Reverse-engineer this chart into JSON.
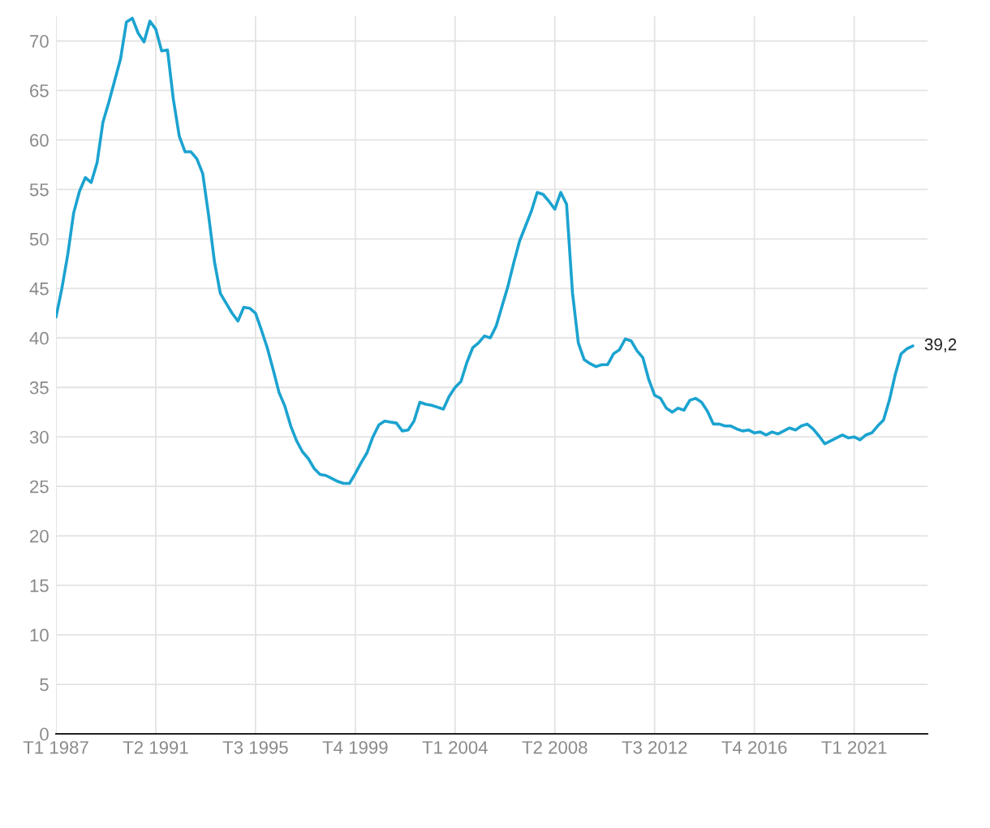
{
  "chart_data": {
    "type": "line",
    "categories": [
      "T1 1987",
      null,
      null,
      null,
      null,
      null,
      null,
      null,
      null,
      null,
      null,
      null,
      null,
      null,
      null,
      null,
      null,
      "T2 1991",
      null,
      null,
      null,
      null,
      null,
      null,
      null,
      null,
      null,
      null,
      null,
      null,
      null,
      null,
      null,
      null,
      "T3 1995",
      null,
      null,
      null,
      null,
      null,
      null,
      null,
      null,
      null,
      null,
      null,
      null,
      null,
      null,
      null,
      null,
      "T4 1999",
      null,
      null,
      null,
      null,
      null,
      null,
      null,
      null,
      null,
      null,
      null,
      null,
      null,
      null,
      null,
      null,
      "T1 2004",
      null,
      null,
      null,
      null,
      null,
      null,
      null,
      null,
      null,
      null,
      null,
      null,
      null,
      null,
      null,
      null,
      "T2 2008",
      null,
      null,
      null,
      null,
      null,
      null,
      null,
      null,
      null,
      null,
      null,
      null,
      null,
      null,
      null,
      null,
      "T3 2012",
      null,
      null,
      null,
      null,
      null,
      null,
      null,
      null,
      null,
      null,
      null,
      null,
      null,
      null,
      null,
      null,
      "T4 2016",
      null,
      null,
      null,
      null,
      null,
      null,
      null,
      null,
      null,
      null,
      null,
      null,
      null,
      null,
      null,
      null,
      "T1 2021",
      null,
      null,
      null,
      null,
      null,
      null,
      null,
      null,
      null,
      null
    ],
    "series": [
      {
        "color": "#1ba3d0",
        "values": [
          42.1,
          45.0,
          48.4,
          52.6,
          54.8,
          56.2,
          55.7,
          57.7,
          61.8,
          63.8,
          66.0,
          68.2,
          71.9,
          72.3,
          70.8,
          69.9,
          72.0,
          71.2,
          69.0,
          69.1,
          64.1,
          60.4,
          58.8,
          58.8,
          58.1,
          56.6,
          52.4,
          47.7,
          44.5,
          43.5,
          42.5,
          41.7,
          43.1,
          43.0,
          42.5,
          40.8,
          39.0,
          36.8,
          34.5,
          33.1,
          31.1,
          29.6,
          28.5,
          27.8,
          26.8,
          26.2,
          26.1,
          25.8,
          25.5,
          25.3,
          25.3,
          26.3,
          27.4,
          28.4,
          30.0,
          31.2,
          31.6,
          31.5,
          31.4,
          30.6,
          30.7,
          31.6,
          33.5,
          33.3,
          33.2,
          33.0,
          32.8,
          34.1,
          35.0,
          35.6,
          37.5,
          39.0,
          39.5,
          40.2,
          40.0,
          41.2,
          43.2,
          45.2,
          47.6,
          49.8,
          51.3,
          52.8,
          54.7,
          54.5,
          53.8,
          53.0,
          54.7,
          53.5,
          44.6,
          39.5,
          37.8,
          37.4,
          37.1,
          37.3,
          37.3,
          38.4,
          38.8,
          39.9,
          39.7,
          38.7,
          38.0,
          35.8,
          34.2,
          33.9,
          32.9,
          32.5,
          32.9,
          32.7,
          33.7,
          33.9,
          33.5,
          32.6,
          31.3,
          31.3,
          31.1,
          31.1,
          30.8,
          30.6,
          30.7,
          30.4,
          30.5,
          30.2,
          30.5,
          30.3,
          30.6,
          30.9,
          30.7,
          31.1,
          31.3,
          30.8,
          30.1,
          29.3,
          29.6,
          29.9,
          30.2,
          29.9,
          30.0,
          29.7,
          30.2,
          30.4,
          31.1,
          31.7,
          33.7,
          36.3,
          38.4,
          38.9,
          39.2
        ],
        "value_labels": [
          null,
          null,
          null,
          null,
          null,
          null,
          null,
          null,
          null,
          null,
          null,
          null,
          null,
          null,
          null,
          null,
          null,
          null,
          null,
          null,
          null,
          null,
          null,
          null,
          null,
          null,
          null,
          null,
          null,
          null,
          null,
          null,
          null,
          null,
          null,
          null,
          null,
          null,
          null,
          null,
          null,
          null,
          null,
          null,
          null,
          null,
          null,
          null,
          null,
          null,
          null,
          null,
          null,
          null,
          null,
          null,
          null,
          null,
          null,
          null,
          null,
          null,
          null,
          null,
          null,
          null,
          null,
          null,
          null,
          null,
          null,
          null,
          null,
          null,
          null,
          null,
          null,
          null,
          null,
          null,
          null,
          null,
          null,
          null,
          null,
          null,
          null,
          null,
          null,
          null,
          null,
          null,
          null,
          null,
          null,
          null,
          null,
          null,
          null,
          null,
          null,
          null,
          null,
          null,
          null,
          null,
          null,
          null,
          null,
          null,
          null,
          null,
          null,
          null,
          null,
          null,
          null,
          null,
          null,
          null,
          null,
          null,
          null,
          null,
          null,
          null,
          null,
          null,
          null,
          null,
          null,
          null,
          null,
          null,
          null,
          null,
          null,
          null,
          null,
          null,
          null,
          null,
          null,
          null,
          null,
          null,
          "39,2"
        ]
      }
    ],
    "ylim": [
      0,
      72.5
    ],
    "yticks": [
      0,
      5,
      10,
      15,
      20,
      25,
      30,
      35,
      40,
      45,
      50,
      55,
      60,
      65,
      70
    ],
    "grid": true,
    "marker": "none",
    "line_style": "solid"
  }
}
